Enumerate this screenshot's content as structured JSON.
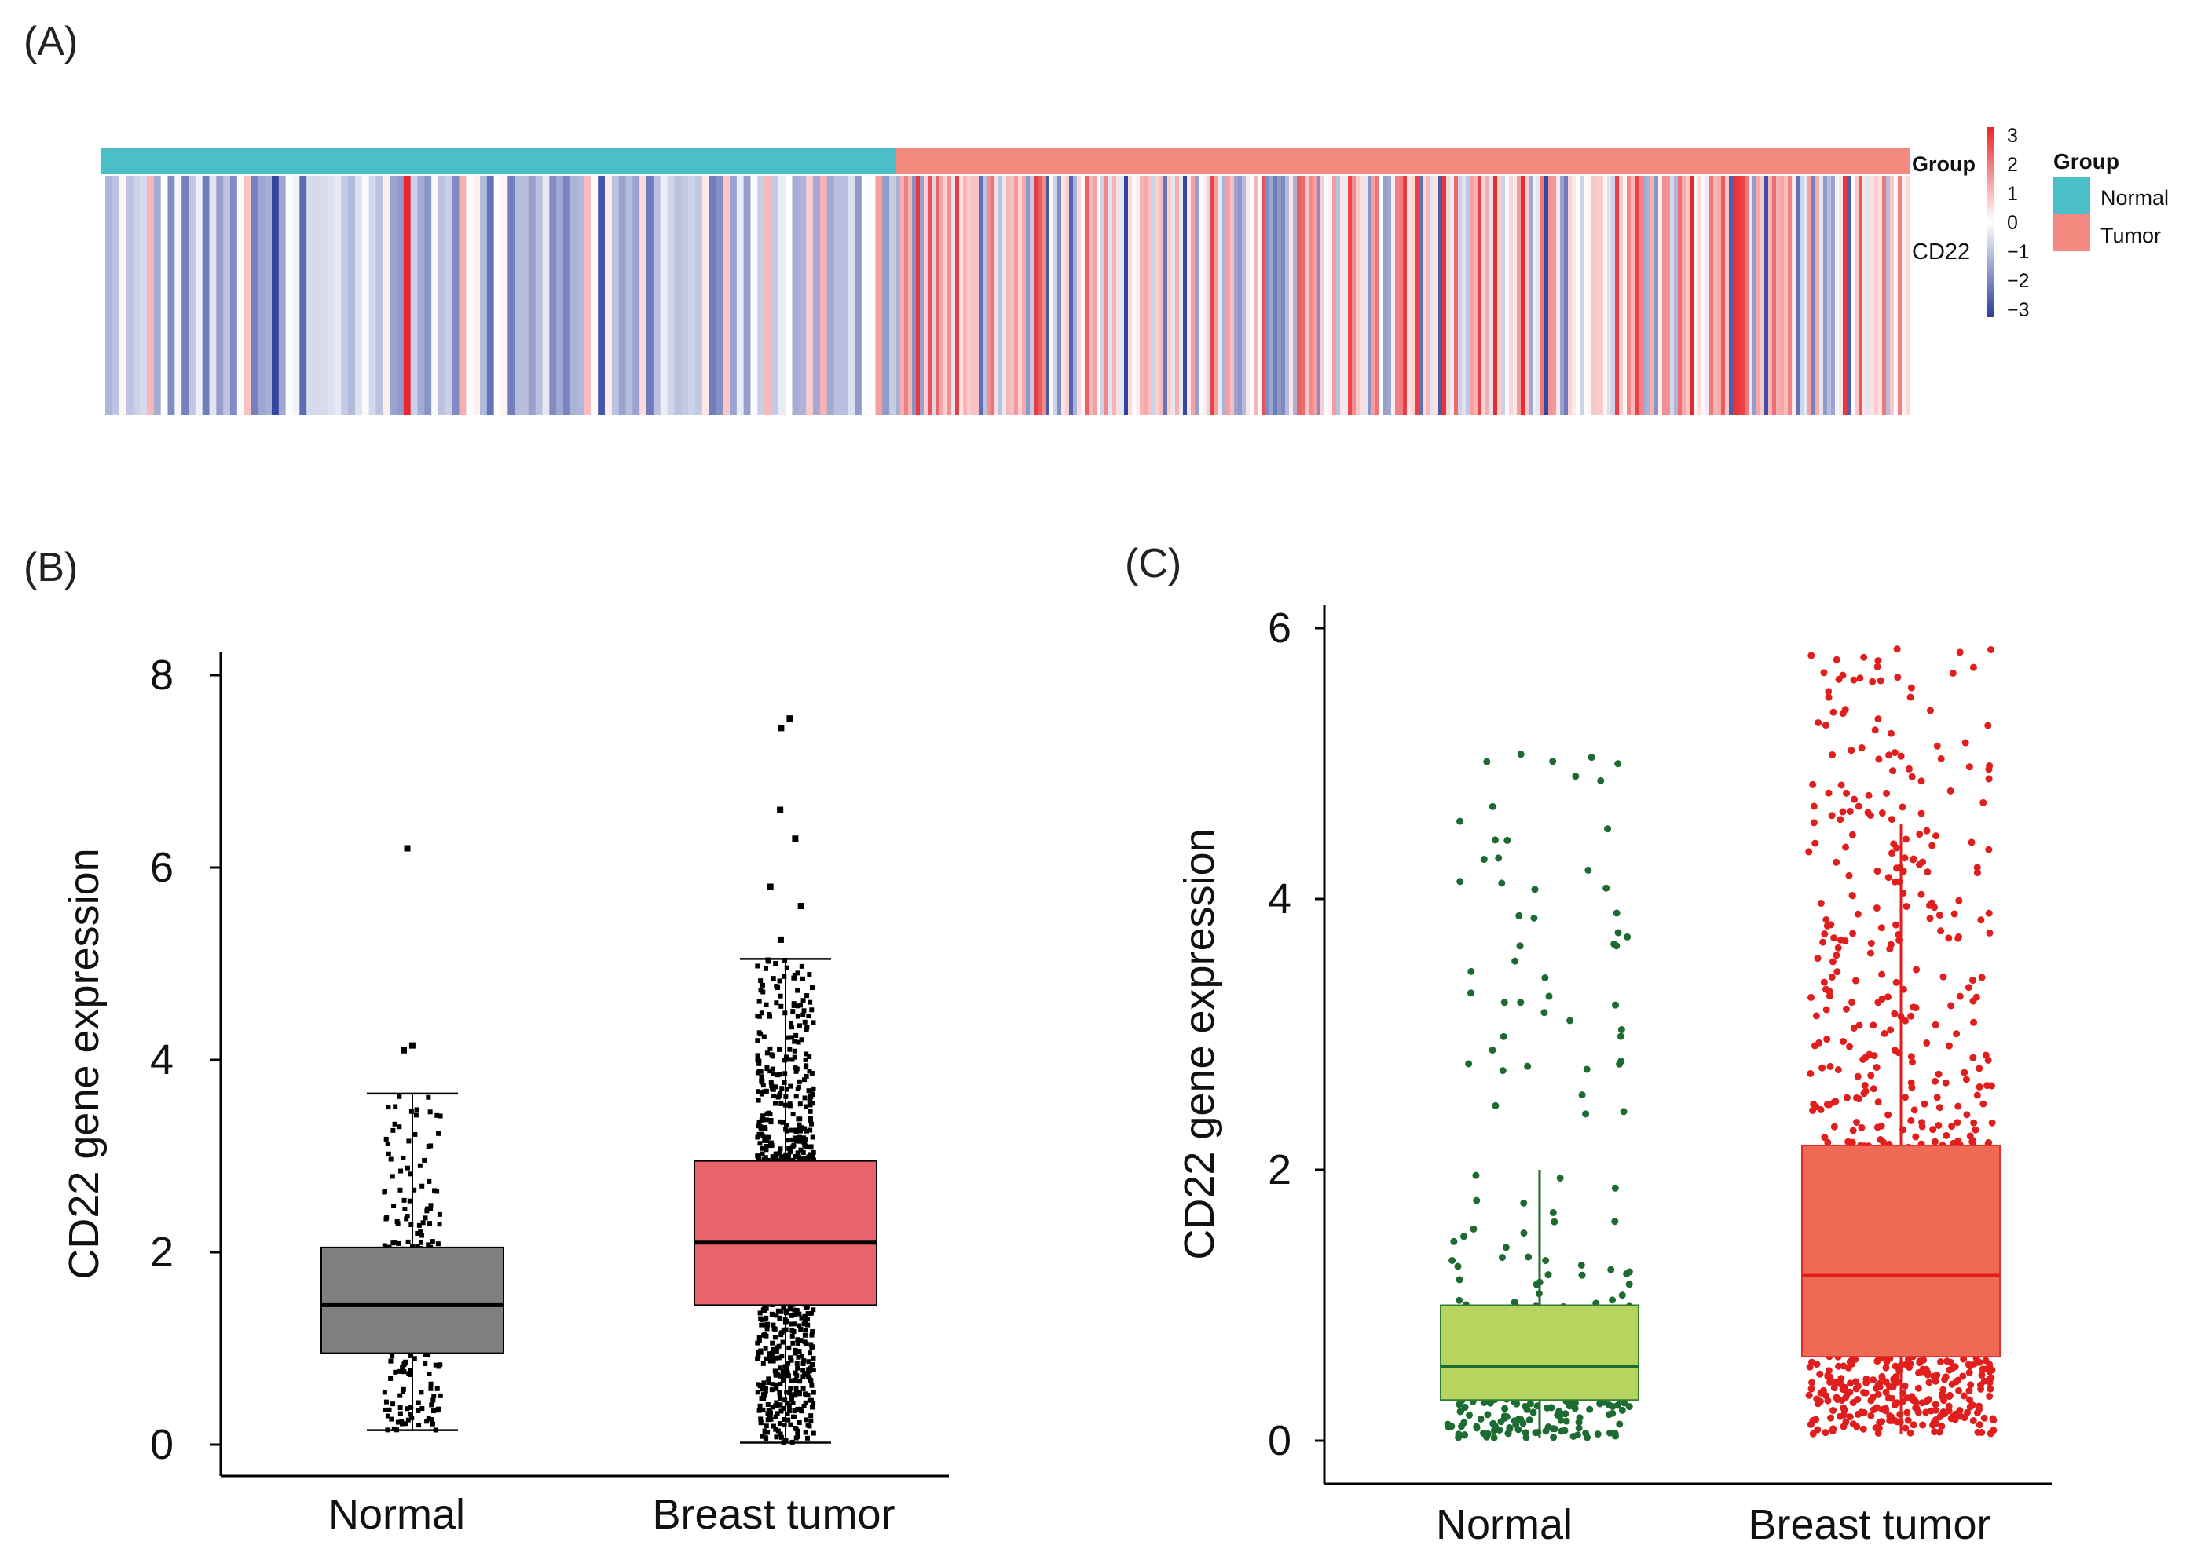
{
  "panels": {
    "a": "(A)",
    "b": "(B)",
    "c": "(C)"
  },
  "heatmap": {
    "gene": "CD22",
    "annotation_label": "Group",
    "legend_title": "Group",
    "groups": [
      "Normal",
      "Tumor"
    ],
    "group_colors": {
      "Normal": "#4bbfc8",
      "Tumor": "#f28a80"
    },
    "color_scale": {
      "ticks": [
        "3",
        "2",
        "1",
        "0",
        "−1",
        "−2",
        "−3"
      ],
      "values": [
        3,
        2,
        1,
        0,
        -1,
        -2,
        -3
      ],
      "high": "#e8262b",
      "mid": "#ffffff",
      "low": "#2b3e9b"
    }
  },
  "chart_data": [
    {
      "type": "box",
      "panel": "B",
      "title": "",
      "xlabel": "",
      "ylabel": "CD22 gene expression",
      "ylim": [
        0,
        8
      ],
      "yticks": [
        0,
        2,
        4,
        6,
        8
      ],
      "categories": [
        "Normal",
        "Breast tumor"
      ],
      "grid": false,
      "series": [
        {
          "name": "Normal",
          "fill": "#7f7f7f",
          "median": 1.45,
          "q1": 0.95,
          "q3": 2.05,
          "whisker_low": 0.15,
          "whisker_high": 3.65,
          "outliers": [
            4.15,
            4.1,
            6.2
          ]
        },
        {
          "name": "Breast tumor",
          "fill": "#e8646a",
          "median": 2.1,
          "q1": 1.45,
          "q3": 2.95,
          "whisker_low": 0.02,
          "whisker_high": 5.05,
          "outliers": [
            5.25,
            5.6,
            5.8,
            6.3,
            6.6,
            7.45,
            7.55
          ]
        }
      ],
      "point_color": "#000000"
    },
    {
      "type": "box",
      "panel": "C",
      "title": "",
      "xlabel": "",
      "ylabel": "CD22 gene expression",
      "ylim": [
        0,
        6
      ],
      "yticks": [
        0,
        2,
        4,
        6
      ],
      "categories": [
        "Normal",
        "Breast tumor"
      ],
      "grid": false,
      "series": [
        {
          "name": "Normal",
          "fill": "#b7d45e",
          "point_color": "#1e6b32",
          "median": 0.55,
          "q1": 0.3,
          "q3": 1.0,
          "whisker_low": 0.02,
          "whisker_high": 2.0,
          "max_point": 5.1
        },
        {
          "name": "Breast tumor",
          "fill": "#ef6a55",
          "point_color": "#e01e1e",
          "median": 1.22,
          "q1": 0.62,
          "q3": 2.18,
          "whisker_low": 0.05,
          "whisker_high": 4.55,
          "max_point": 5.85
        }
      ]
    }
  ]
}
